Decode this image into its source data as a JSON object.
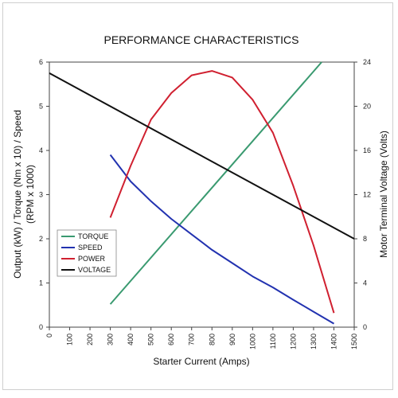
{
  "chart_data": {
    "type": "line",
    "title": "PERFORMANCE CHARACTERISTICS",
    "xlabel": "Starter Current (Amps)",
    "ylabel_left": [
      "Output (kW) / Torque (Nm x 10) / Speed",
      "(RPM x 1000)"
    ],
    "ylabel_right": "Motor Terminal Voltage (Volts)",
    "xlim": [
      0,
      1500
    ],
    "ylim_left": [
      0,
      6
    ],
    "ylim_right": [
      0,
      24
    ],
    "x_ticks": [
      "0",
      "100",
      "200",
      "300",
      "400",
      "500",
      "600",
      "700",
      "800",
      "900",
      "1000",
      "1100",
      "1200",
      "1300",
      "1400",
      "1500"
    ],
    "y_ticks_left": [
      "0",
      "1",
      "2",
      "3",
      "4",
      "5",
      "6"
    ],
    "y_ticks_right": [
      "0",
      "4",
      "8",
      "12",
      "16",
      "20",
      "24"
    ],
    "grid": false,
    "legend_position": "lower-left",
    "series": [
      {
        "name": "TORQUE",
        "color": "#3a9a70",
        "axis": "left",
        "points": [
          [
            300,
            0.52
          ],
          [
            1340,
            6.0
          ]
        ]
      },
      {
        "name": "SPEED",
        "color": "#2232b0",
        "axis": "left",
        "points": [
          [
            300,
            3.9
          ],
          [
            400,
            3.3
          ],
          [
            500,
            2.85
          ],
          [
            600,
            2.45
          ],
          [
            700,
            2.1
          ],
          [
            800,
            1.75
          ],
          [
            900,
            1.45
          ],
          [
            1000,
            1.15
          ],
          [
            1100,
            0.9
          ],
          [
            1200,
            0.62
          ],
          [
            1300,
            0.35
          ],
          [
            1400,
            0.08
          ]
        ]
      },
      {
        "name": "POWER",
        "color": "#d02030",
        "axis": "left",
        "points": [
          [
            300,
            2.48
          ],
          [
            400,
            3.65
          ],
          [
            500,
            4.7
          ],
          [
            600,
            5.3
          ],
          [
            700,
            5.7
          ],
          [
            800,
            5.8
          ],
          [
            900,
            5.65
          ],
          [
            1000,
            5.15
          ],
          [
            1100,
            4.4
          ],
          [
            1200,
            3.2
          ],
          [
            1300,
            1.85
          ],
          [
            1400,
            0.32
          ]
        ]
      },
      {
        "name": "VOLTAGE",
        "color": "#111111",
        "axis": "right",
        "points": [
          [
            0,
            23.0
          ],
          [
            1500,
            8.0
          ]
        ]
      }
    ]
  }
}
